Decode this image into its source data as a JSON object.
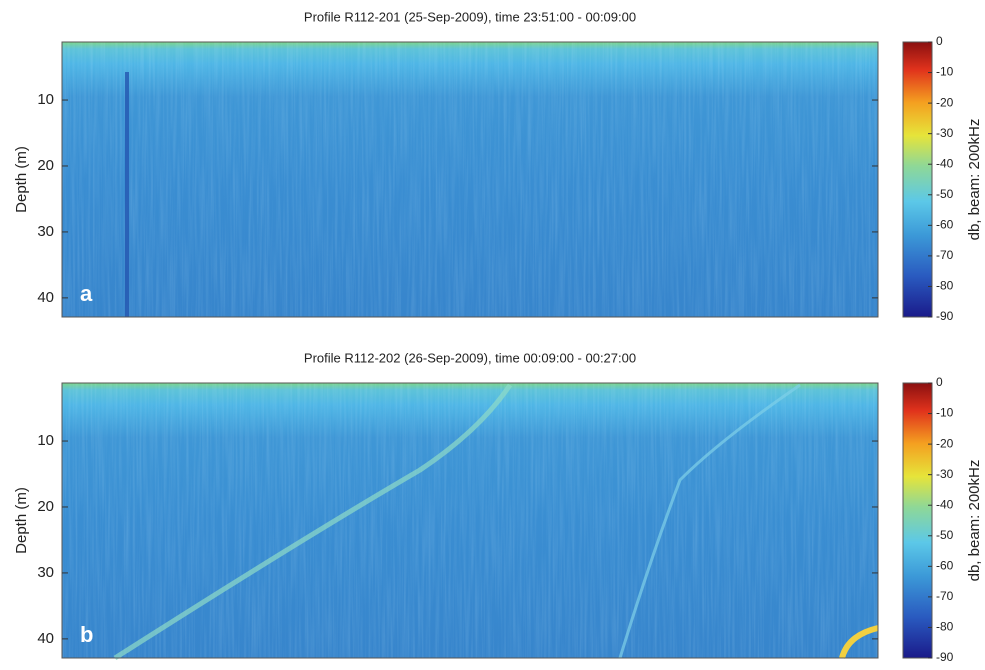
{
  "chart_data": [
    {
      "type": "heatmap",
      "title": "Profile R112-201 (25-Sep-2009), time 23:51:00 - 00:09:00",
      "panel_label": "a",
      "ylabel": "Depth (m)",
      "ylim": [
        1.2,
        42.9
      ],
      "y_inverted": true,
      "yticks": [
        10,
        20,
        30,
        40
      ],
      "colorbar_label": "db, beam: 200kHz",
      "clim": [
        -90,
        0
      ],
      "cticks": [
        0,
        -10,
        -20,
        -30,
        -40,
        -50,
        -60,
        -70,
        -80,
        -90
      ]
    },
    {
      "type": "heatmap",
      "title": "Profile R112-202 (26-Sep-2009), time 00:09:00 - 00:27:00",
      "panel_label": "b",
      "ylabel": "Depth (m)",
      "ylim": [
        1.2,
        42.9
      ],
      "y_inverted": true,
      "yticks": [
        10,
        20,
        30,
        40
      ],
      "colorbar_label": "db, beam: 200kHz",
      "clim": [
        -90,
        0
      ],
      "cticks": [
        0,
        -10,
        -20,
        -30,
        -40,
        -50,
        -60,
        -70,
        -80,
        -90
      ]
    }
  ]
}
